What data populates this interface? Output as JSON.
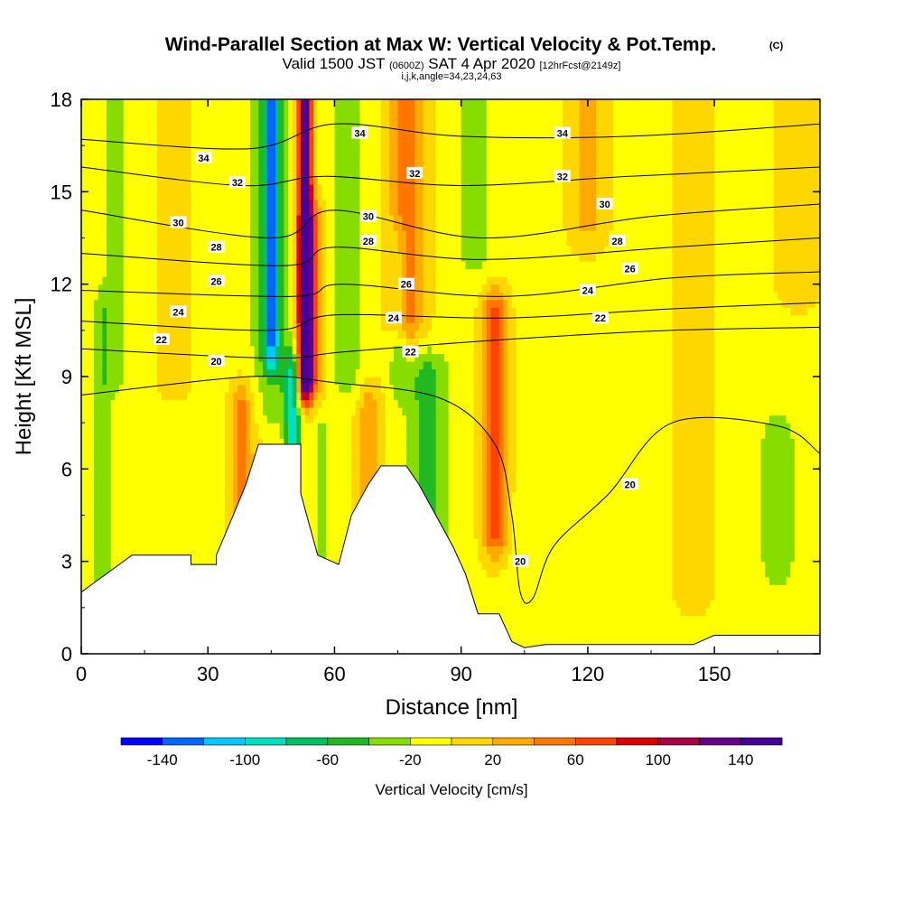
{
  "chart_data": {
    "type": "heatmap",
    "title": {
      "main": "Wind-Parallel Section at Max W: Vertical Velocity & Pot.Temp.",
      "copyright": "(C)",
      "valid_prefix": "Valid 1500 JST",
      "valid_utc": "(0600Z)",
      "valid_date": "SAT 4 Apr 2020",
      "forecast": "[12hrFcst@2149z]",
      "indices": "i,j,k,angle=34,23,24,63"
    },
    "xlabel": "Distance [nm]",
    "ylabel": "Height [Kft MSL]",
    "xlim": [
      0,
      175
    ],
    "ylim": [
      0,
      18
    ],
    "x_ticks": [
      "0",
      "30",
      "60",
      "90",
      "120",
      "150"
    ],
    "y_ticks": [
      "0",
      "3",
      "6",
      "9",
      "12",
      "15",
      "18"
    ],
    "x_tick_values": [
      0,
      30,
      60,
      90,
      120,
      150
    ],
    "y_tick_values": [
      0,
      3,
      6,
      9,
      12,
      15,
      18
    ],
    "colorbar": {
      "title": "Vertical Velocity [cm/s]",
      "levels": [
        -160,
        -140,
        -120,
        -100,
        -80,
        -60,
        -40,
        -20,
        0,
        20,
        40,
        60,
        80,
        100,
        120,
        140,
        160
      ],
      "labels": [
        "-140",
        "-100",
        "-60",
        "-20",
        "20",
        "60",
        "100",
        "140"
      ],
      "label_values": [
        -140,
        -100,
        -60,
        -20,
        20,
        60,
        100,
        140
      ],
      "colors": [
        "#0000ff",
        "#0066ff",
        "#00c8ff",
        "#00e0c0",
        "#00c060",
        "#22b822",
        "#88dd00",
        "#ffff00",
        "#ffd700",
        "#ffaa00",
        "#ff7700",
        "#ff4400",
        "#dd0000",
        "#aa0044",
        "#660088",
        "#440099"
      ]
    },
    "velocity_field": {
      "background": -5,
      "features": [
        {
          "x": 5,
          "y0": 2,
          "y1": 11,
          "w": 1.5,
          "v": -25
        },
        {
          "x": 8,
          "y0": 9,
          "y1": 18,
          "w": 2.5,
          "v": -20
        },
        {
          "x": 22,
          "y0": 9,
          "y1": 18,
          "w": 3,
          "v": 12
        },
        {
          "x": 40,
          "y0": 0,
          "y1": 8,
          "w": 4,
          "v": 15
        },
        {
          "x": 38,
          "y0": 3,
          "y1": 8,
          "w": 1.5,
          "v": 45
        },
        {
          "x": 45,
          "y0": 8,
          "y1": 18,
          "w": 4,
          "v": -28
        },
        {
          "x": 45,
          "y0": 10,
          "y1": 18,
          "w": 1.3,
          "v": -95
        },
        {
          "x": 50,
          "y0": 4,
          "y1": 9,
          "w": 1.3,
          "v": -80
        },
        {
          "x": 53,
          "y0": 9,
          "y1": 18,
          "w": 1.3,
          "v": 160
        },
        {
          "x": 55,
          "y0": 9,
          "y1": 14,
          "w": 2,
          "v": 50
        },
        {
          "x": 57,
          "y0": 3,
          "y1": 7,
          "w": 1.5,
          "v": -22
        },
        {
          "x": 63,
          "y0": 9,
          "y1": 18,
          "w": 3,
          "v": -25
        },
        {
          "x": 68,
          "y0": 5,
          "y1": 8,
          "w": 2,
          "v": 40
        },
        {
          "x": 77,
          "y0": 11,
          "y1": 18,
          "w": 3,
          "v": 55
        },
        {
          "x": 82,
          "y0": 3,
          "y1": 9,
          "w": 3.5,
          "v": -45
        },
        {
          "x": 75,
          "y0": 9,
          "y1": 13,
          "w": 1.5,
          "v": -25
        },
        {
          "x": 93,
          "y0": 13,
          "y1": 18,
          "w": 3,
          "v": -25
        },
        {
          "x": 98,
          "y0": 4,
          "y1": 11,
          "w": 2,
          "v": 75
        },
        {
          "x": 105,
          "y0": 0,
          "y1": 4,
          "w": 2,
          "v": -15
        },
        {
          "x": 120,
          "y0": 14,
          "y1": 18,
          "w": 3,
          "v": 30
        },
        {
          "x": 145,
          "y0": 2,
          "y1": 18,
          "w": 4,
          "v": 10
        },
        {
          "x": 165,
          "y0": 3,
          "y1": 7,
          "w": 3,
          "v": -30
        },
        {
          "x": 170,
          "y0": 12,
          "y1": 18,
          "w": 4,
          "v": 15
        }
      ]
    },
    "terrain_nm_kft": [
      [
        0,
        2
      ],
      [
        3,
        2.3
      ],
      [
        6,
        2.6
      ],
      [
        9,
        2.9
      ],
      [
        12,
        3.2
      ],
      [
        26,
        3.2
      ],
      [
        26,
        2.9
      ],
      [
        32,
        2.9
      ],
      [
        32,
        3.2
      ],
      [
        36,
        4.5
      ],
      [
        39,
        5.5
      ],
      [
        42,
        6.8
      ],
      [
        52,
        6.8
      ],
      [
        52,
        5.2
      ],
      [
        56,
        3.2
      ],
      [
        61,
        2.9
      ],
      [
        64,
        4.5
      ],
      [
        68,
        5.5
      ],
      [
        71,
        6.1
      ],
      [
        77,
        6.1
      ],
      [
        80,
        5.5
      ],
      [
        84,
        4.5
      ],
      [
        88,
        3.5
      ],
      [
        91,
        2.6
      ],
      [
        94,
        1.3
      ],
      [
        99,
        1.3
      ],
      [
        102,
        0.4
      ],
      [
        105,
        0.2
      ],
      [
        110,
        0.3
      ],
      [
        145,
        0.3
      ],
      [
        150,
        0.6
      ],
      [
        175,
        0.6
      ]
    ],
    "theta_contours": [
      {
        "label": "34",
        "label_positions": [
          [
            29,
            16.1
          ],
          [
            66,
            16.9
          ],
          [
            114,
            16.9
          ]
        ],
        "points": [
          [
            0,
            16.7
          ],
          [
            40,
            16.4
          ],
          [
            60,
            17.2
          ],
          [
            90,
            16.8
          ],
          [
            130,
            16.8
          ],
          [
            175,
            17.2
          ]
        ]
      },
      {
        "label": "32",
        "label_positions": [
          [
            37,
            15.3
          ],
          [
            79,
            15.6
          ],
          [
            114,
            15.5
          ]
        ],
        "points": [
          [
            0,
            15.8
          ],
          [
            38,
            15.2
          ],
          [
            58,
            15.5
          ],
          [
            90,
            15.2
          ],
          [
            130,
            15.5
          ],
          [
            175,
            15.8
          ]
        ]
      },
      {
        "label": "30",
        "label_positions": [
          [
            23,
            14.0
          ],
          [
            68,
            14.2
          ],
          [
            124,
            14.6
          ]
        ],
        "points": [
          [
            0,
            14.4
          ],
          [
            45,
            13.5
          ],
          [
            60,
            14.4
          ],
          [
            95,
            13.5
          ],
          [
            135,
            14.2
          ],
          [
            175,
            14.6
          ]
        ]
      },
      {
        "label": "28",
        "label_positions": [
          [
            32,
            13.2
          ],
          [
            68,
            13.4
          ],
          [
            127,
            13.4
          ]
        ],
        "points": [
          [
            0,
            13.0
          ],
          [
            48,
            12.6
          ],
          [
            60,
            13.2
          ],
          [
            95,
            12.8
          ],
          [
            140,
            13.2
          ],
          [
            175,
            13.5
          ]
        ]
      },
      {
        "label": "26",
        "label_positions": [
          [
            32,
            12.1
          ],
          [
            77,
            12.0
          ],
          [
            130,
            12.5
          ]
        ],
        "points": [
          [
            0,
            11.8
          ],
          [
            50,
            11.6
          ],
          [
            62,
            12.0
          ],
          [
            100,
            11.6
          ],
          [
            140,
            12.2
          ],
          [
            175,
            12.4
          ]
        ]
      },
      {
        "label": "24",
        "label_positions": [
          [
            23,
            11.1
          ],
          [
            74,
            10.9
          ],
          [
            120,
            11.8
          ]
        ],
        "points": [
          [
            0,
            10.8
          ],
          [
            45,
            10.5
          ],
          [
            60,
            11.0
          ],
          [
            100,
            10.9
          ],
          [
            140,
            11.2
          ],
          [
            175,
            11.4
          ]
        ]
      },
      {
        "label": "22",
        "label_positions": [
          [
            19,
            10.2
          ],
          [
            78,
            9.8
          ],
          [
            123,
            10.9
          ]
        ],
        "points": [
          [
            0,
            9.9
          ],
          [
            45,
            9.6
          ],
          [
            62,
            9.8
          ],
          [
            100,
            10.2
          ],
          [
            140,
            10.5
          ],
          [
            175,
            10.6
          ]
        ]
      },
      {
        "label": "20",
        "label_positions": [
          [
            32,
            9.5
          ],
          [
            104,
            3.0
          ],
          [
            130,
            5.5
          ]
        ],
        "points": [
          [
            0,
            8.4
          ],
          [
            40,
            9.0
          ],
          [
            60,
            8.8
          ],
          [
            85,
            8.3
          ],
          [
            98,
            6.8
          ],
          [
            102,
            4.5
          ],
          [
            104,
            2.0
          ],
          [
            107,
            1.8
          ],
          [
            112,
            3.5
          ],
          [
            125,
            5.2
          ],
          [
            140,
            7.5
          ],
          [
            165,
            7.4
          ],
          [
            175,
            6.5
          ]
        ]
      }
    ]
  }
}
